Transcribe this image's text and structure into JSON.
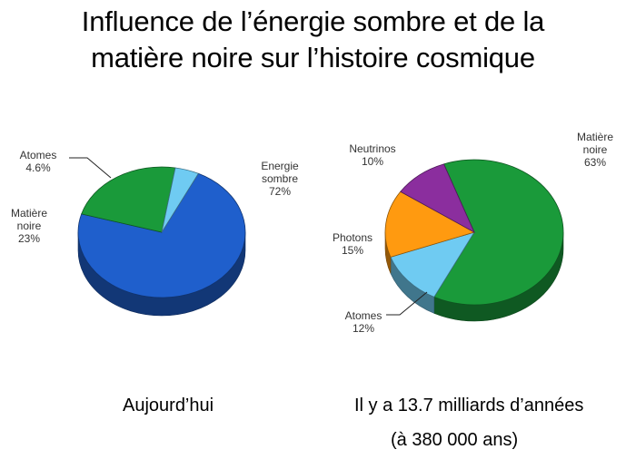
{
  "title": {
    "line1": "Influence de l’énergie sombre et de la",
    "line2": "matière noire sur l’histoire cosmique"
  },
  "chart_data": [
    {
      "type": "pie",
      "title": "Aujourd’hui",
      "slices": [
        {
          "label_lines": [
            "Energie",
            "sombre",
            "72%"
          ],
          "value": 72,
          "color": "#1f5fcc"
        },
        {
          "label_lines": [
            "Matière",
            "noire",
            "23%"
          ],
          "value": 23,
          "color": "#1a9a3a"
        },
        {
          "label_lines": [
            "Atomes",
            "4.6%"
          ],
          "value": 4.6,
          "color": "#6fcbf2"
        }
      ]
    },
    {
      "type": "pie",
      "title": "Il y a 13.7 milliards d’années",
      "subtitle": "(à 380 000 ans)",
      "slices": [
        {
          "label_lines": [
            "Matière",
            "noire",
            "63%"
          ],
          "value": 63,
          "color": "#1a9a3a"
        },
        {
          "label_lines": [
            "Atomes",
            "12%"
          ],
          "value": 12,
          "color": "#6fcbf2"
        },
        {
          "label_lines": [
            "Photons",
            "15%"
          ],
          "value": 15,
          "color": "#ff9a10"
        },
        {
          "label_lines": [
            "Neutrinos",
            "10%"
          ],
          "value": 10,
          "color": "#8b2e9e"
        }
      ]
    }
  ]
}
